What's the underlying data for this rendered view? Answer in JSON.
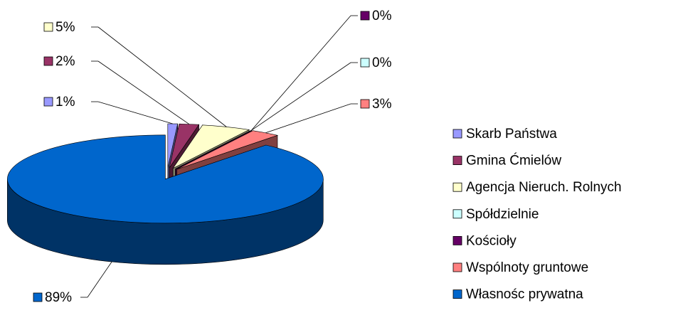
{
  "chart_data": {
    "type": "pie",
    "categories": [
      "Skarb Państwa",
      "Gmina Ćmielów",
      "Agencja Nieruch. Rolnych",
      "Spółdzielnie",
      "Kościoły",
      "Wspólnoty gruntowe",
      "Własnośc prywatna"
    ],
    "values": [
      1,
      2,
      5,
      0,
      0,
      3,
      89
    ],
    "value_labels": [
      "1%",
      "2%",
      "5%",
      "0%",
      "0%",
      "3%",
      "89%"
    ],
    "colors": [
      "#9999ff",
      "#993366",
      "#ffffcc",
      "#ccffff",
      "#660066",
      "#ff8080",
      "#0066cc"
    ]
  }
}
